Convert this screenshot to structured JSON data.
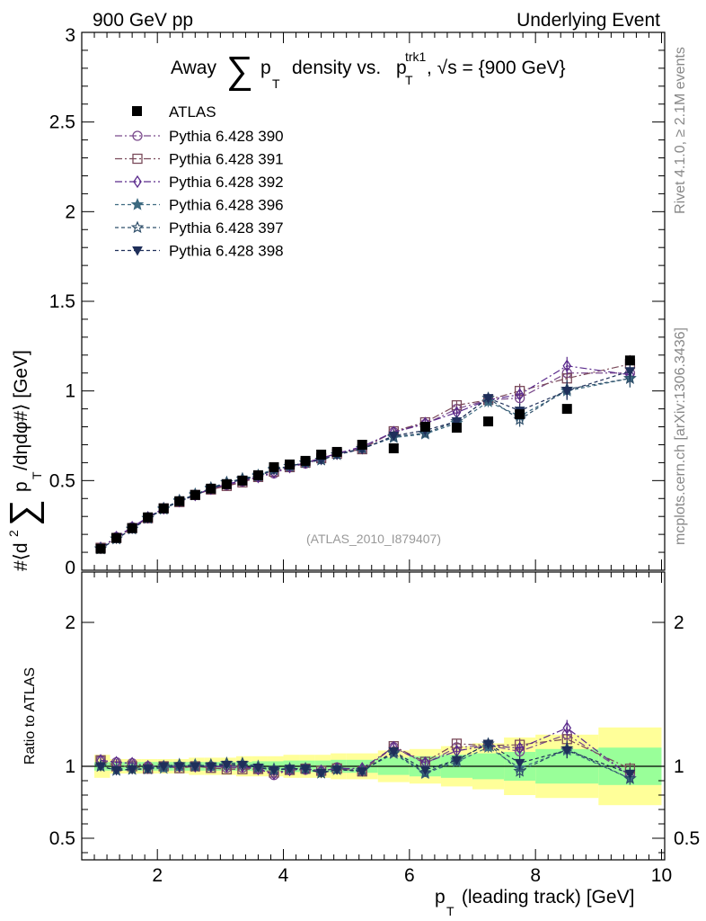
{
  "chart_data": {
    "type": "line",
    "header_left": "900 GeV pp",
    "header_right": "Underlying Event",
    "title": {
      "prefix": "Away",
      "sum": "∑",
      "p": "p",
      "sub_T": "T",
      "middle": "density vs.",
      "p2": "p",
      "sup_trk1": "trk1",
      "sub_T2": "T",
      "suffix": ", √s = {900 GeV}"
    },
    "ylabel": {
      "prefix": "#⟨d",
      "sup2": "2",
      "sum": "∑",
      "p": "p",
      "sub_T": "T",
      "suffix": " /dηdφ#⟩ [GeV]"
    },
    "xlabel": {
      "p": "p",
      "sub_T": "T",
      "suffix": " (leading track) [GeV]"
    },
    "ratio_ylabel": "Ratio to ATLAS",
    "right_note_top": "Rivet 4.1.0, ≥ 2.1M events",
    "right_note_bottom": "mcplots.cern.ch [arXiv:1306.3436]",
    "watermark": "(ATLAS_2010_I879407)",
    "xlim": [
      0.8,
      10.05
    ],
    "ylim_main": [
      0,
      3
    ],
    "ylim_ratio": [
      0.35,
      2.35
    ],
    "x_ticks": [
      2,
      4,
      6,
      8,
      10
    ],
    "x_tick_labels": [
      "2",
      "4",
      "6",
      "8",
      "10"
    ],
    "y_ticks_main": [
      0,
      0.5,
      1,
      1.5,
      2,
      2.5,
      3
    ],
    "y_tick_labels_main": [
      "0",
      "0.5",
      "1",
      "1.5",
      "2",
      "2.5",
      "3"
    ],
    "y_ticks_ratio": [
      0.5,
      1,
      2
    ],
    "y_tick_labels_ratio": [
      "0.5",
      "1",
      "2"
    ],
    "x": [
      1.1,
      1.35,
      1.6,
      1.85,
      2.1,
      2.35,
      2.6,
      2.85,
      3.1,
      3.35,
      3.6,
      3.85,
      4.1,
      4.35,
      4.6,
      4.85,
      5.25,
      5.75,
      6.25,
      6.75,
      7.25,
      7.75,
      8.5,
      9.5
    ],
    "bin_edges": [
      1.0,
      1.25,
      1.5,
      1.75,
      2.0,
      2.25,
      2.5,
      2.75,
      3.0,
      3.25,
      3.5,
      3.75,
      4.0,
      4.25,
      4.5,
      4.75,
      5.0,
      5.5,
      6.0,
      6.5,
      7.0,
      7.5,
      8.0,
      9.0,
      10.0
    ],
    "data": {
      "name": "ATLAS",
      "values": [
        0.12,
        0.18,
        0.235,
        0.295,
        0.345,
        0.385,
        0.42,
        0.455,
        0.48,
        0.5,
        0.53,
        0.575,
        0.59,
        0.61,
        0.645,
        0.66,
        0.7,
        0.68,
        0.8,
        0.795,
        0.83,
        0.87,
        0.9,
        1.17
      ],
      "band_inner": [
        0.03,
        0.03,
        0.03,
        0.03,
        0.03,
        0.03,
        0.03,
        0.03,
        0.03,
        0.03,
        0.035,
        0.035,
        0.04,
        0.04,
        0.04,
        0.045,
        0.045,
        0.06,
        0.07,
        0.08,
        0.09,
        0.1,
        0.12,
        0.13
      ],
      "band_outer": [
        0.08,
        0.05,
        0.05,
        0.05,
        0.05,
        0.05,
        0.06,
        0.06,
        0.06,
        0.07,
        0.07,
        0.07,
        0.08,
        0.08,
        0.08,
        0.09,
        0.09,
        0.11,
        0.12,
        0.14,
        0.16,
        0.2,
        0.22,
        0.27
      ]
    },
    "series": [
      {
        "name": "Pythia 6.428 390",
        "color": "#7a4a8c",
        "marker": "circle-open",
        "dash": "8,3,2,3",
        "values": [
          0.125,
          0.185,
          0.24,
          0.295,
          0.345,
          0.385,
          0.42,
          0.455,
          0.475,
          0.495,
          0.52,
          0.54,
          0.575,
          0.595,
          0.62,
          0.655,
          0.68,
          0.77,
          0.815,
          0.9,
          0.95,
          0.96,
          1.1,
          1.1
        ],
        "err": [
          0.003,
          0.004,
          0.005,
          0.005,
          0.006,
          0.006,
          0.007,
          0.007,
          0.008,
          0.008,
          0.009,
          0.01,
          0.01,
          0.011,
          0.012,
          0.012,
          0.012,
          0.015,
          0.02,
          0.025,
          0.03,
          0.04,
          0.05,
          0.05
        ]
      },
      {
        "name": "Pythia 6.428 391",
        "color": "#7a4a5a",
        "marker": "square-open",
        "dash": "8,3,2,3",
        "values": [
          0.125,
          0.18,
          0.235,
          0.29,
          0.345,
          0.38,
          0.42,
          0.45,
          0.47,
          0.49,
          0.52,
          0.55,
          0.575,
          0.6,
          0.625,
          0.65,
          0.675,
          0.775,
          0.825,
          0.92,
          0.95,
          1.0,
          1.07,
          1.15
        ],
        "err": [
          0.003,
          0.004,
          0.005,
          0.005,
          0.006,
          0.006,
          0.007,
          0.007,
          0.008,
          0.008,
          0.009,
          0.01,
          0.01,
          0.011,
          0.012,
          0.012,
          0.012,
          0.015,
          0.02,
          0.025,
          0.03,
          0.04,
          0.05,
          0.05
        ]
      },
      {
        "name": "Pythia 6.428 392",
        "color": "#5a2a8c",
        "marker": "diamond-open",
        "dash": "8,3,2,3",
        "values": [
          0.125,
          0.185,
          0.24,
          0.295,
          0.345,
          0.385,
          0.42,
          0.455,
          0.48,
          0.5,
          0.52,
          0.545,
          0.575,
          0.6,
          0.625,
          0.65,
          0.69,
          0.77,
          0.82,
          0.88,
          0.95,
          0.98,
          1.14,
          1.09
        ],
        "err": [
          0.003,
          0.004,
          0.005,
          0.005,
          0.006,
          0.006,
          0.007,
          0.007,
          0.008,
          0.008,
          0.009,
          0.01,
          0.01,
          0.011,
          0.012,
          0.012,
          0.012,
          0.015,
          0.02,
          0.025,
          0.03,
          0.04,
          0.05,
          0.05
        ]
      },
      {
        "name": "Pythia 6.428 396",
        "color": "#3d6a80",
        "marker": "star-filled",
        "dash": "4,3",
        "values": [
          0.12,
          0.175,
          0.23,
          0.29,
          0.34,
          0.385,
          0.425,
          0.455,
          0.49,
          0.51,
          0.53,
          0.565,
          0.58,
          0.6,
          0.615,
          0.645,
          0.68,
          0.74,
          0.76,
          0.82,
          0.94,
          0.86,
          1.0,
          1.07
        ],
        "err": [
          0.003,
          0.004,
          0.005,
          0.005,
          0.006,
          0.006,
          0.007,
          0.007,
          0.008,
          0.008,
          0.009,
          0.01,
          0.01,
          0.011,
          0.012,
          0.012,
          0.012,
          0.015,
          0.02,
          0.025,
          0.03,
          0.04,
          0.05,
          0.05
        ]
      },
      {
        "name": "Pythia 6.428 397",
        "color": "#2f4f6a",
        "marker": "star-open",
        "dash": "4,3",
        "values": [
          0.12,
          0.175,
          0.23,
          0.29,
          0.345,
          0.39,
          0.42,
          0.46,
          0.49,
          0.51,
          0.525,
          0.56,
          0.58,
          0.6,
          0.615,
          0.645,
          0.68,
          0.745,
          0.765,
          0.83,
          0.96,
          0.84,
          1.01,
          1.07
        ],
        "err": [
          0.003,
          0.004,
          0.005,
          0.005,
          0.006,
          0.006,
          0.007,
          0.007,
          0.008,
          0.008,
          0.009,
          0.01,
          0.01,
          0.011,
          0.012,
          0.012,
          0.012,
          0.015,
          0.02,
          0.025,
          0.03,
          0.04,
          0.05,
          0.05
        ]
      },
      {
        "name": "Pythia 6.428 398",
        "color": "#1f2f5a",
        "marker": "triangle-down-filled",
        "dash": "4,3",
        "values": [
          0.12,
          0.175,
          0.23,
          0.29,
          0.345,
          0.385,
          0.42,
          0.455,
          0.485,
          0.505,
          0.525,
          0.56,
          0.58,
          0.6,
          0.615,
          0.645,
          0.675,
          0.75,
          0.78,
          0.83,
          0.96,
          0.89,
          1.0,
          1.11
        ],
        "err": [
          0.003,
          0.004,
          0.005,
          0.005,
          0.006,
          0.006,
          0.007,
          0.007,
          0.008,
          0.008,
          0.009,
          0.01,
          0.01,
          0.011,
          0.012,
          0.012,
          0.012,
          0.015,
          0.02,
          0.025,
          0.03,
          0.04,
          0.05,
          0.05
        ]
      }
    ],
    "colors": {
      "band_inner": "#99ff99",
      "band_outer": "#ffff99",
      "data_marker": "#000000",
      "note_text": "#888888",
      "watermark_text": "#999999"
    },
    "legend_placement": "top-left"
  }
}
